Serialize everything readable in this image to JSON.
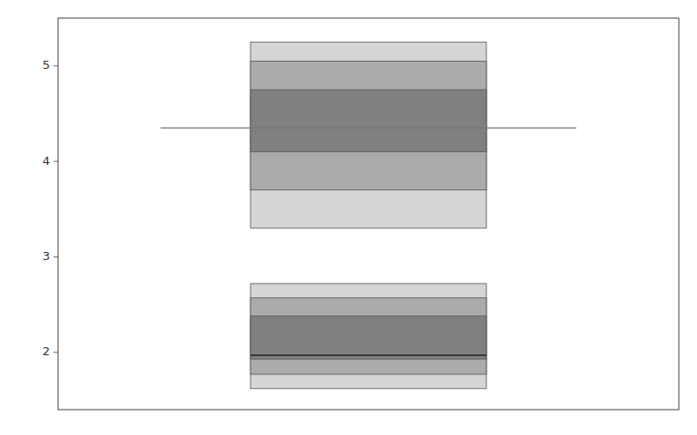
{
  "chart_data": {
    "type": "hdr_boxplot",
    "ylim": [
      1.4,
      5.5
    ],
    "yticks": [
      2,
      3,
      4,
      5
    ],
    "tick_labels": "y",
    "grid": false,
    "colors": [
      "#d5d5d5",
      "#ababab",
      "#808080"
    ],
    "series": [
      {
        "color": "#777777",
        "low_99": 3.3,
        "high_99": 5.25,
        "low_95": 3.7,
        "high_95": 5.05,
        "low_50": 4.1,
        "high_50": 4.75,
        "mode": 4.35
      },
      {
        "color": "#222222",
        "low_99": 1.62,
        "high_99": 2.72,
        "low_95": 1.77,
        "high_95": 2.57,
        "low_50": 1.93,
        "high_50": 2.38,
        "mode": 1.97
      }
    ]
  }
}
